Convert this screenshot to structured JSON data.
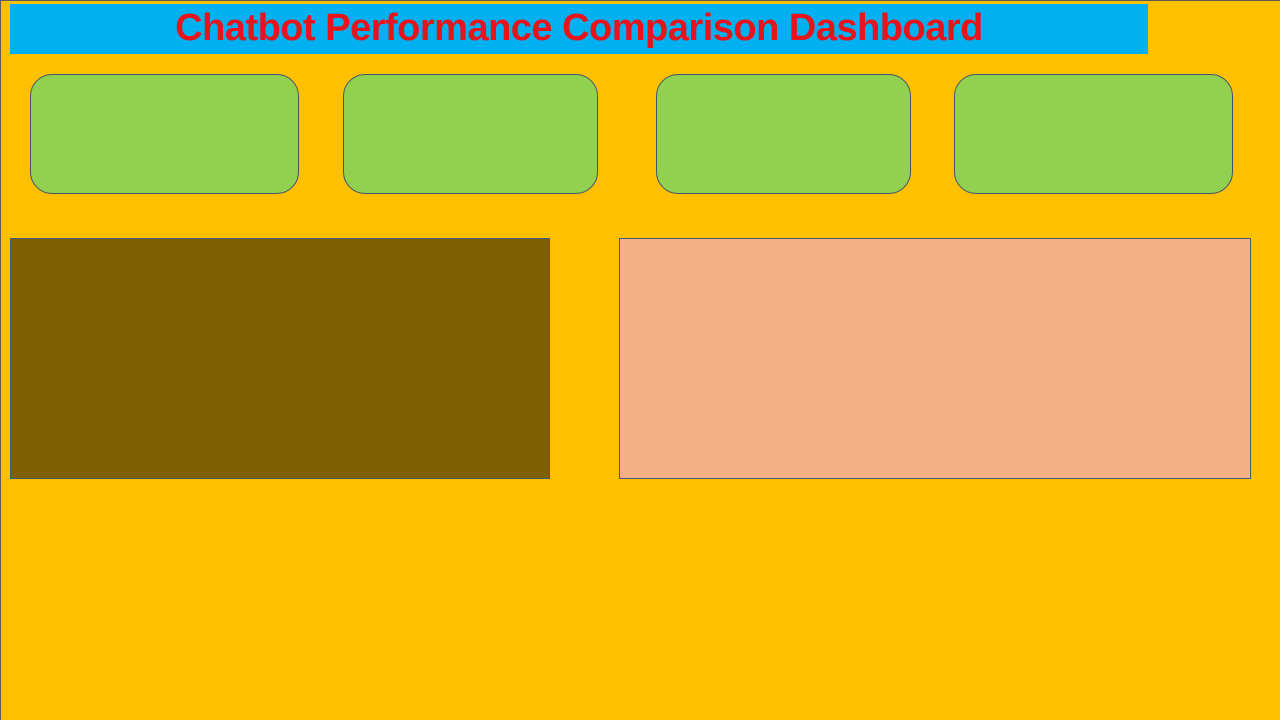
{
  "dashboard": {
    "title": "Chatbot Performance Comparison Dashboard"
  },
  "colors": {
    "background": "#FFC000",
    "title_bar": "#00B0F0",
    "title_text": "#E8141B",
    "kpi_card": "#92D050",
    "left_panel": "#7F6000",
    "right_panel": "#F4B183"
  }
}
